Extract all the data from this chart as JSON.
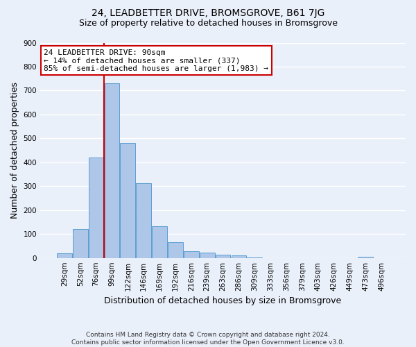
{
  "title": "24, LEADBETTER DRIVE, BROMSGROVE, B61 7JG",
  "subtitle": "Size of property relative to detached houses in Bromsgrove",
  "xlabel": "Distribution of detached houses by size in Bromsgrove",
  "ylabel": "Number of detached properties",
  "footer_line1": "Contains HM Land Registry data © Crown copyright and database right 2024.",
  "footer_line2": "Contains public sector information licensed under the Open Government Licence v3.0.",
  "bar_labels": [
    "29sqm",
    "52sqm",
    "76sqm",
    "99sqm",
    "122sqm",
    "146sqm",
    "169sqm",
    "192sqm",
    "216sqm",
    "239sqm",
    "263sqm",
    "286sqm",
    "309sqm",
    "333sqm",
    "356sqm",
    "379sqm",
    "403sqm",
    "426sqm",
    "449sqm",
    "473sqm",
    "496sqm"
  ],
  "bar_values": [
    20,
    122,
    420,
    730,
    480,
    313,
    133,
    65,
    28,
    22,
    15,
    10,
    2,
    0,
    0,
    0,
    0,
    0,
    0,
    5,
    0
  ],
  "bar_color": "#aec6e8",
  "bar_edge_color": "#5a9fd4",
  "vline_x_index": 3,
  "vline_color": "#cc0000",
  "annotation_line1": "24 LEADBETTER DRIVE: 90sqm",
  "annotation_line2": "← 14% of detached houses are smaller (337)",
  "annotation_line3": "85% of semi-detached houses are larger (1,983) →",
  "annotation_box_color": "#ffffff",
  "annotation_box_edge_color": "#cc0000",
  "ylim": [
    0,
    900
  ],
  "yticks": [
    0,
    100,
    200,
    300,
    400,
    500,
    600,
    700,
    800,
    900
  ],
  "bg_color": "#eaf0fa",
  "plot_bg_color": "#eaf0fa",
  "grid_color": "#ffffff",
  "title_fontsize": 10,
  "subtitle_fontsize": 9,
  "xlabel_fontsize": 9,
  "ylabel_fontsize": 9,
  "tick_fontsize": 7.5,
  "annotation_fontsize": 8
}
